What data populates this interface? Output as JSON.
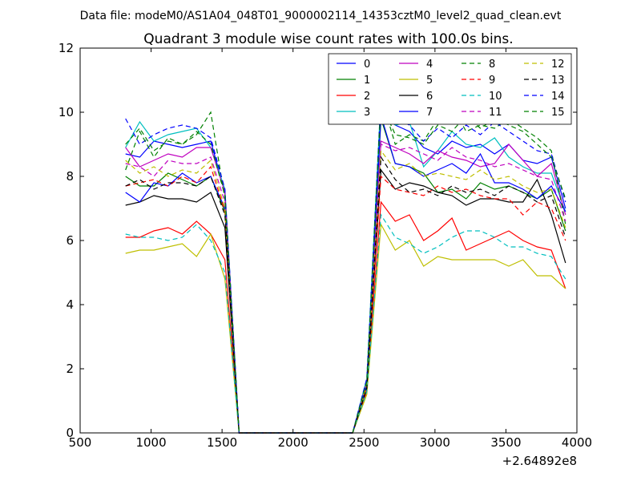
{
  "chart_data": {
    "type": "line",
    "suptitle": "Data file: modeM0/AS1A04_048T01_9000002114_14353cztM0_level2_quad_clean.evt",
    "title": "Quadrant 3 module wise count rates with 100.0s bins.",
    "xlabel": "",
    "ylabel": "",
    "x_offset_label": "+2.64892e8",
    "xlim": [
      500,
      4000
    ],
    "ylim": [
      0,
      12
    ],
    "xticks": [
      500,
      1000,
      1500,
      2000,
      2500,
      3000,
      3500,
      4000
    ],
    "yticks": [
      0,
      2,
      4,
      6,
      8,
      10,
      12
    ],
    "grid": false,
    "legend": {
      "position": "top-right",
      "columns": 4
    },
    "x": [
      820,
      920,
      1020,
      1120,
      1220,
      1320,
      1420,
      1520,
      1620,
      1720,
      1820,
      1920,
      2020,
      2120,
      2220,
      2320,
      2420,
      2520,
      2620,
      2720,
      2820,
      2920,
      3020,
      3120,
      3220,
      3320,
      3420,
      3520,
      3620,
      3720,
      3820,
      3920
    ],
    "series": [
      {
        "name": "0",
        "color": "#0000ff",
        "dash": "solid",
        "values": [
          8.7,
          8.6,
          9.1,
          9.0,
          8.9,
          9.0,
          9.1,
          7.5,
          0,
          0,
          0,
          0,
          0,
          0,
          0,
          0,
          0,
          1.6,
          10.0,
          9.6,
          9.4,
          8.9,
          8.7,
          9.1,
          8.9,
          9.0,
          8.7,
          9.0,
          8.5,
          8.4,
          8.6,
          7.0
        ]
      },
      {
        "name": "1",
        "color": "#008000",
        "dash": "solid",
        "values": [
          8.0,
          7.7,
          7.7,
          8.1,
          7.9,
          7.7,
          8.0,
          6.9,
          0,
          0,
          0,
          0,
          0,
          0,
          0,
          0,
          0,
          1.5,
          9.8,
          8.4,
          8.3,
          8.1,
          7.5,
          7.6,
          7.3,
          7.8,
          7.6,
          7.7,
          7.5,
          7.3,
          7.6,
          6.3
        ]
      },
      {
        "name": "2",
        "color": "#ff0000",
        "dash": "solid",
        "values": [
          6.1,
          6.1,
          6.3,
          6.4,
          6.2,
          6.6,
          6.2,
          5.4,
          0,
          0,
          0,
          0,
          0,
          0,
          0,
          0,
          0,
          1.3,
          7.2,
          6.6,
          6.8,
          6.0,
          6.3,
          6.7,
          5.7,
          5.9,
          6.1,
          6.3,
          6.0,
          5.8,
          5.7,
          4.5
        ]
      },
      {
        "name": "3",
        "color": "#00bfbf",
        "dash": "solid",
        "values": [
          8.9,
          9.7,
          9.1,
          9.3,
          9.4,
          9.5,
          8.9,
          7.6,
          0,
          0,
          0,
          0,
          0,
          0,
          0,
          0,
          0,
          1.7,
          10.5,
          9.6,
          9.7,
          8.3,
          8.8,
          9.4,
          9.0,
          8.9,
          9.2,
          8.6,
          8.3,
          8.1,
          8.1,
          6.9
        ]
      },
      {
        "name": "4",
        "color": "#bf00bf",
        "dash": "solid",
        "values": [
          8.9,
          8.3,
          8.5,
          8.7,
          8.6,
          8.9,
          8.9,
          7.5,
          0,
          0,
          0,
          0,
          0,
          0,
          0,
          0,
          0,
          1.6,
          9.1,
          8.9,
          8.7,
          8.4,
          8.8,
          8.6,
          8.5,
          8.3,
          8.4,
          9.0,
          8.5,
          8.0,
          8.4,
          6.8
        ]
      },
      {
        "name": "5",
        "color": "#bfbf00",
        "dash": "solid",
        "values": [
          5.6,
          5.7,
          5.7,
          5.8,
          5.9,
          5.5,
          6.2,
          4.8,
          0,
          0,
          0,
          0,
          0,
          0,
          0,
          0,
          0,
          1.2,
          6.5,
          5.7,
          6.0,
          5.2,
          5.5,
          5.4,
          5.4,
          5.4,
          5.4,
          5.2,
          5.4,
          4.9,
          4.9,
          4.5
        ]
      },
      {
        "name": "6",
        "color": "#000000",
        "dash": "solid",
        "values": [
          7.1,
          7.2,
          7.4,
          7.3,
          7.3,
          7.2,
          7.5,
          6.4,
          0,
          0,
          0,
          0,
          0,
          0,
          0,
          0,
          0,
          1.4,
          8.2,
          7.6,
          7.8,
          7.7,
          7.5,
          7.4,
          7.1,
          7.3,
          7.3,
          7.2,
          7.2,
          7.9,
          6.8,
          5.3
        ]
      },
      {
        "name": "7",
        "color": "#0000ff",
        "dash": "solid",
        "values": [
          7.5,
          7.2,
          7.8,
          7.7,
          8.1,
          7.8,
          8.0,
          7.0,
          0,
          0,
          0,
          0,
          0,
          0,
          0,
          0,
          0,
          1.5,
          9.9,
          8.4,
          8.3,
          8.0,
          8.2,
          8.4,
          8.1,
          8.7,
          7.8,
          7.8,
          7.6,
          7.3,
          7.7,
          6.9
        ]
      },
      {
        "name": "8",
        "color": "#008000",
        "dash": "dashed",
        "values": [
          9.0,
          9.5,
          8.8,
          9.1,
          9.0,
          9.3,
          10.0,
          7.3,
          0,
          0,
          0,
          0,
          0,
          0,
          0,
          0,
          0,
          1.6,
          10.5,
          9.0,
          9.3,
          9.1,
          9.8,
          10.2,
          9.4,
          9.6,
          9.5,
          9.8,
          9.5,
          9.2,
          8.8,
          6.5
        ]
      },
      {
        "name": "9",
        "color": "#ff0000",
        "dash": "dashed",
        "values": [
          7.7,
          7.8,
          7.9,
          7.7,
          8.0,
          7.8,
          8.3,
          6.9,
          0,
          0,
          0,
          0,
          0,
          0,
          0,
          0,
          0,
          1.4,
          8.0,
          7.6,
          7.5,
          7.4,
          7.7,
          7.5,
          7.6,
          7.4,
          7.3,
          7.3,
          6.8,
          7.2,
          7.0,
          6.0
        ]
      },
      {
        "name": "10",
        "color": "#00bfbf",
        "dash": "dashed",
        "values": [
          6.2,
          6.1,
          6.1,
          6.0,
          6.1,
          6.5,
          6.0,
          5.0,
          0,
          0,
          0,
          0,
          0,
          0,
          0,
          0,
          0,
          1.3,
          6.8,
          6.1,
          5.9,
          5.6,
          5.8,
          6.1,
          6.3,
          6.3,
          6.1,
          5.8,
          5.8,
          5.6,
          5.5,
          4.8
        ]
      },
      {
        "name": "11",
        "color": "#bf00bf",
        "dash": "dashed",
        "values": [
          8.4,
          8.3,
          8.0,
          8.5,
          8.4,
          8.4,
          8.6,
          7.2,
          0,
          0,
          0,
          0,
          0,
          0,
          0,
          0,
          0,
          1.5,
          9.0,
          8.8,
          8.9,
          8.7,
          8.5,
          8.9,
          8.6,
          8.5,
          8.3,
          8.4,
          8.2,
          8.0,
          7.9,
          6.6
        ]
      },
      {
        "name": "12",
        "color": "#bfbf00",
        "dash": "dashed",
        "values": [
          8.5,
          8.1,
          8.3,
          8.0,
          8.2,
          8.1,
          8.5,
          7.0,
          0,
          0,
          0,
          0,
          0,
          0,
          0,
          0,
          0,
          1.5,
          8.8,
          8.2,
          8.4,
          8.0,
          8.1,
          8.0,
          7.9,
          8.2,
          7.9,
          8.0,
          7.7,
          7.5,
          7.6,
          6.4
        ]
      },
      {
        "name": "13",
        "color": "#000000",
        "dash": "dashed",
        "values": [
          7.7,
          7.9,
          7.6,
          7.8,
          7.8,
          7.7,
          8.0,
          6.8,
          0,
          0,
          0,
          0,
          0,
          0,
          0,
          0,
          0,
          1.4,
          8.6,
          7.9,
          7.5,
          7.6,
          7.4,
          7.7,
          7.5,
          7.6,
          7.4,
          7.7,
          7.5,
          7.2,
          7.4,
          6.1
        ]
      },
      {
        "name": "14",
        "color": "#0000ff",
        "dash": "dashed",
        "values": [
          9.8,
          9.0,
          9.3,
          9.5,
          9.6,
          9.5,
          9.2,
          7.6,
          0,
          0,
          0,
          0,
          0,
          0,
          0,
          0,
          0,
          1.7,
          10.4,
          9.8,
          9.6,
          9.1,
          9.5,
          9.2,
          9.6,
          9.3,
          9.7,
          9.4,
          9.1,
          8.8,
          8.7,
          7.2
        ]
      },
      {
        "name": "15",
        "color": "#008000",
        "dash": "dashed",
        "values": [
          8.2,
          9.4,
          8.6,
          9.2,
          9.0,
          9.4,
          9.0,
          7.4,
          0,
          0,
          0,
          0,
          0,
          0,
          0,
          0,
          0,
          1.6,
          10.3,
          9.3,
          9.2,
          9.0,
          9.6,
          9.4,
          9.9,
          9.5,
          9.8,
          9.6,
          9.4,
          9.0,
          8.6,
          7.3
        ]
      }
    ]
  }
}
